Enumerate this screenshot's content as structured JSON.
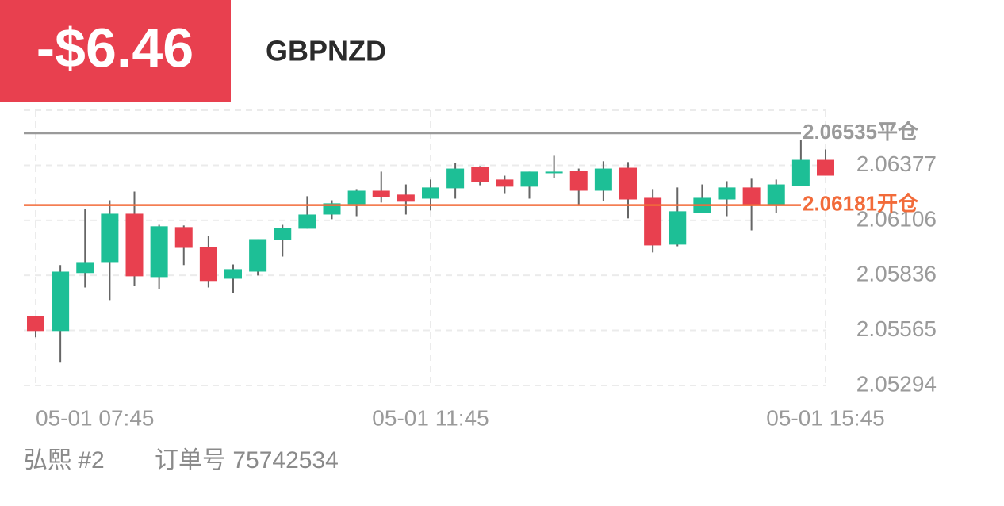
{
  "header": {
    "pnl": "-$6.46",
    "symbol": "GBPNZD"
  },
  "chart_data": {
    "type": "candlestick",
    "categories": [
      "05-01 07:45",
      null,
      null,
      null,
      null,
      null,
      null,
      null,
      null,
      null,
      null,
      null,
      null,
      null,
      null,
      null,
      "05-01 11:45",
      null,
      null,
      null,
      null,
      null,
      null,
      null,
      null,
      null,
      null,
      null,
      null,
      null,
      null,
      null,
      "05-01 15:45"
    ],
    "open": [
      2.05636,
      2.05562,
      2.05847,
      2.05901,
      2.06139,
      2.05827,
      2.06073,
      2.05975,
      2.05819,
      2.05854,
      2.0601,
      2.06065,
      2.06135,
      2.06186,
      2.06252,
      2.06233,
      2.06213,
      2.06264,
      2.06369,
      2.06307,
      2.06272,
      2.06338,
      2.0635,
      2.06252,
      2.06365,
      2.06217,
      2.05987,
      2.06143,
      2.06209,
      2.06268,
      2.06178,
      2.06276,
      2.06404
    ],
    "high": [
      2.05636,
      2.05886,
      2.06162,
      2.06205,
      2.06248,
      2.06084,
      2.06081,
      2.0603,
      2.05889,
      2.06014,
      2.06084,
      2.06225,
      2.06205,
      2.0626,
      2.06346,
      2.06283,
      2.06307,
      2.06389,
      2.06373,
      2.06326,
      2.06346,
      2.06424,
      2.06361,
      2.06397,
      2.06393,
      2.0626,
      2.06268,
      2.06283,
      2.06299,
      2.06311,
      2.06307,
      2.06502,
      2.06455
    ],
    "low": [
      2.05531,
      2.05406,
      2.05776,
      2.05714,
      2.05784,
      2.05769,
      2.05886,
      2.05776,
      2.05749,
      2.05835,
      2.05928,
      2.06065,
      2.06112,
      2.06127,
      2.06194,
      2.06135,
      2.06155,
      2.06213,
      2.06279,
      2.0624,
      2.06213,
      2.06315,
      2.06182,
      2.06201,
      2.06116,
      2.05948,
      2.05979,
      2.06143,
      2.06127,
      2.06057,
      2.06143,
      2.06276,
      2.06326
    ],
    "close": [
      2.05562,
      2.05854,
      2.05901,
      2.06139,
      2.05831,
      2.06077,
      2.05971,
      2.05808,
      2.05866,
      2.06014,
      2.06069,
      2.06135,
      2.0619,
      2.06252,
      2.06221,
      2.06198,
      2.06268,
      2.06361,
      2.06295,
      2.06272,
      2.06346,
      2.06346,
      2.06252,
      2.06361,
      2.06209,
      2.05983,
      2.06151,
      2.06217,
      2.06268,
      2.06182,
      2.06283,
      2.06404,
      2.06326
    ],
    "up_color": "#1dbf96",
    "down_color": "#e8404f",
    "ylim": [
      2.05294,
      2.06648
    ],
    "yticks": [
      2.05294,
      2.05565,
      2.05836,
      2.06106,
      2.06377
    ],
    "grid": true,
    "lines": [
      {
        "value": 2.06535,
        "label": "平仓",
        "color": "#9a9a9a"
      },
      {
        "value": 2.06181,
        "label": "开仓",
        "color": "#f26b3a"
      }
    ]
  },
  "footer": {
    "account": "弘熙 #2",
    "order": "订单号 75742534"
  }
}
